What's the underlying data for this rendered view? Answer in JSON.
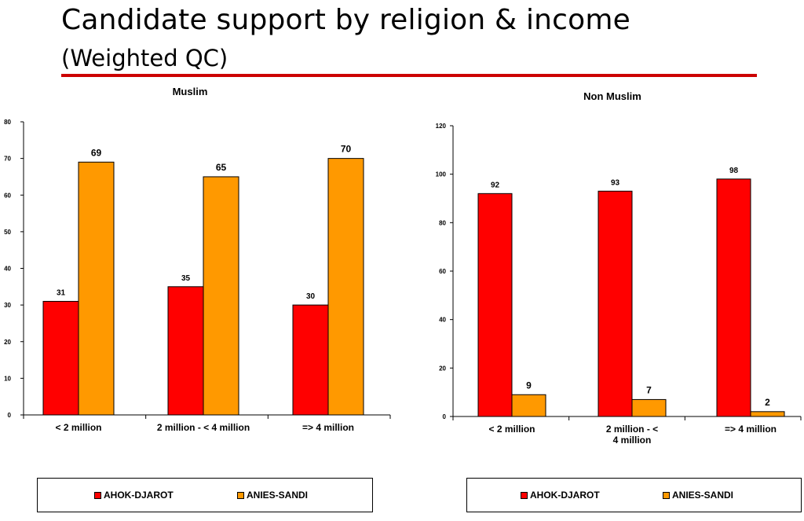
{
  "slide": {
    "title": "Candidate support by religion & income",
    "subtitle": "(Weighted QC)"
  },
  "colors": {
    "ahok": "#ff0000",
    "anies": "#ff9900",
    "rule": "#cc0000"
  },
  "chart_data": [
    {
      "type": "bar",
      "title": "Muslim",
      "categories": [
        "< 2 million",
        "2 million - < 4 million",
        "=> 4 million"
      ],
      "series": [
        {
          "name": "AHOK-DJAROT",
          "values": [
            31,
            35,
            30
          ]
        },
        {
          "name": "ANIES-SANDI",
          "values": [
            69,
            65,
            70
          ]
        }
      ],
      "ylim": [
        0,
        80
      ],
      "yticks": [
        0,
        10,
        20,
        30,
        40,
        50,
        60,
        70,
        80
      ],
      "xlabel": "",
      "ylabel": "",
      "grid": false,
      "legend": "bottom"
    },
    {
      "type": "bar",
      "title": "Non Muslim",
      "categories": [
        "< 2 million",
        "2 million - < 4 million",
        "=> 4 million"
      ],
      "series": [
        {
          "name": "AHOK-DJAROT",
          "values": [
            92,
            93,
            98
          ]
        },
        {
          "name": "ANIES-SANDI",
          "values": [
            9,
            7,
            2
          ]
        }
      ],
      "ylim": [
        0,
        120
      ],
      "yticks": [
        0,
        20,
        40,
        60,
        80,
        100,
        120
      ],
      "xlabel": "",
      "ylabel": "",
      "grid": false,
      "legend": "bottom"
    }
  ]
}
